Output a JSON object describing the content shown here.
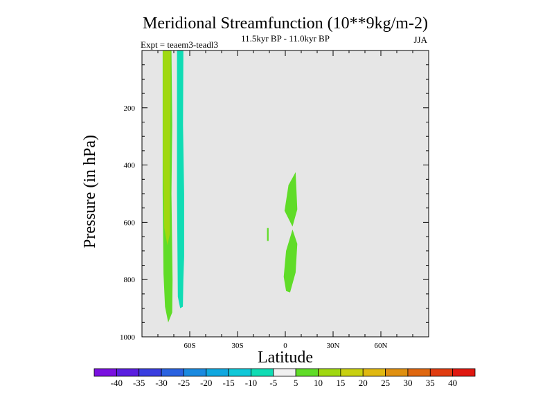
{
  "chart_data": {
    "type": "filled-contour",
    "title": "Meridional Streamfunction (10**9kg/m-2)",
    "subtitle": "11.5kyr BP - 11.0kyr BP",
    "experiment": "Expt = teaem3-teadl3",
    "season": "JJA",
    "xlabel": "Latitude",
    "ylabel": "Pressure (in hPa)",
    "xlim": [
      -90,
      90
    ],
    "ylim": [
      1000,
      0
    ],
    "xticks": [
      -60,
      -30,
      0,
      30,
      60
    ],
    "xtick_labels": [
      "60S",
      "30S",
      "0",
      "30N",
      "60N"
    ],
    "yticks": [
      200,
      400,
      600,
      800,
      1000
    ],
    "ytick_labels": [
      "200",
      "400",
      "600",
      "800",
      "1000"
    ],
    "background_color": "#e6e6e6",
    "colorbar": {
      "labels": [
        "-40",
        "-35",
        "-30",
        "-25",
        "-20",
        "-15",
        "-10",
        "-5",
        "5",
        "10",
        "15",
        "20",
        "25",
        "30",
        "35",
        "40"
      ],
      "colors": [
        "#7a10e0",
        "#5a1ee0",
        "#3a3ee0",
        "#2a62e0",
        "#1a8ae0",
        "#10a8e0",
        "#10c8d8",
        "#10dcb4",
        "#f0f0f0",
        "#60dc28",
        "#a0d810",
        "#c8d010",
        "#e0b810",
        "#e09010",
        "#e06810",
        "#e03c10",
        "#e01810"
      ]
    },
    "regions": [
      {
        "name": "green-band-10-outer",
        "color": "#60dc28",
        "points": [
          [
            -77,
            0
          ],
          [
            -71.5,
            0
          ],
          [
            -71,
            260
          ],
          [
            -71.5,
            500
          ],
          [
            -70.8,
            800
          ],
          [
            -71,
            915
          ],
          [
            -73.5,
            950
          ],
          [
            -75.5,
            895
          ],
          [
            -76.5,
            780
          ],
          [
            -77,
            500
          ]
        ]
      },
      {
        "name": "yellow-green-band-15",
        "color": "#a0d810",
        "points": [
          [
            -76.8,
            0
          ],
          [
            -72,
            0
          ],
          [
            -72,
            150
          ],
          [
            -72.5,
            400
          ],
          [
            -72.5,
            640
          ],
          [
            -74,
            680
          ],
          [
            -76,
            620
          ],
          [
            -76.8,
            380
          ]
        ]
      },
      {
        "name": "cyan-band-minus10",
        "color": "#10dcb4",
        "points": [
          [
            -68,
            0
          ],
          [
            -64,
            0
          ],
          [
            -64.2,
            260
          ],
          [
            -63.5,
            500
          ],
          [
            -63.5,
            720
          ],
          [
            -64,
            800
          ],
          [
            -64.3,
            895
          ],
          [
            -66,
            900
          ],
          [
            -67.5,
            860
          ],
          [
            -68,
            500
          ]
        ]
      },
      {
        "name": "green-equatorial-upper",
        "color": "#60dc28",
        "points": [
          [
            2,
            470
          ],
          [
            6.5,
            425
          ],
          [
            7.5,
            555
          ],
          [
            4.5,
            615
          ],
          [
            -0.5,
            560
          ]
        ]
      },
      {
        "name": "green-equatorial-lower",
        "color": "#60dc28",
        "points": [
          [
            4.5,
            625
          ],
          [
            7.5,
            675
          ],
          [
            6.5,
            775
          ],
          [
            3,
            845
          ],
          [
            0.5,
            840
          ],
          [
            -1,
            790
          ],
          [
            0.5,
            700
          ]
        ]
      },
      {
        "name": "green-small-speck",
        "color": "#60dc28",
        "points": [
          [
            -11.5,
            620
          ],
          [
            -10.5,
            620
          ],
          [
            -10.5,
            665
          ],
          [
            -11.5,
            665
          ]
        ]
      }
    ]
  }
}
